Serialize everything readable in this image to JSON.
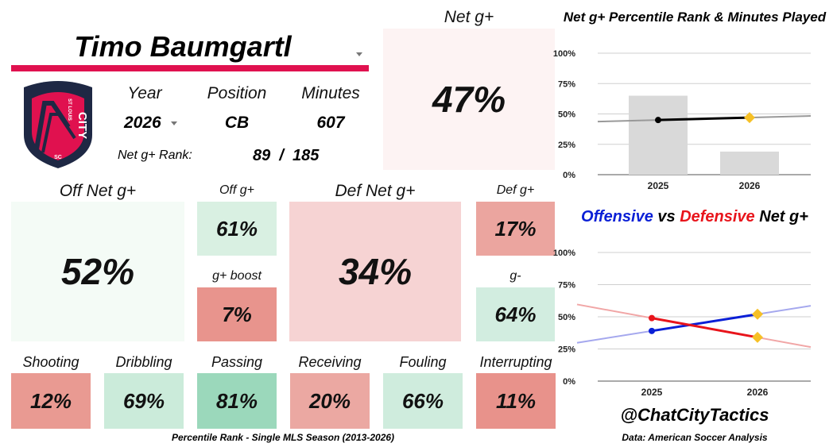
{
  "player": {
    "name": "Timo Baumgartl",
    "year_label": "Year",
    "year_value": "2026",
    "position_label": "Position",
    "position_value": "CB",
    "minutes_label": "Minutes",
    "minutes_value": "607",
    "rank_label": "Net g+ Rank:",
    "rank_value": "89  /  185",
    "club_logo_text": {
      "top": "ST LOUIS",
      "main": "CITY",
      "sc": "SC"
    }
  },
  "net": {
    "label": "Net g+",
    "value": "47%",
    "color": "#fdf3f3"
  },
  "off": {
    "label": "Off Net g+",
    "value": "52%",
    "color": "#f4fbf6"
  },
  "def": {
    "label": "Def Net g+",
    "value": "34%",
    "color": "#f6d3d3"
  },
  "off_g": {
    "label": "Off g+",
    "value": "61%",
    "color": "#d9f0e2"
  },
  "g_boost": {
    "label": "g+ boost",
    "value": "7%",
    "color": "#e8948d"
  },
  "def_g": {
    "label": "Def g+",
    "value": "17%",
    "color": "#eba59f"
  },
  "g_minus": {
    "label": "g-",
    "value": "64%",
    "color": "#d2ede0"
  },
  "skills": [
    {
      "label": "Shooting",
      "value": "12%",
      "color": "#e99a92"
    },
    {
      "label": "Dribbling",
      "value": "69%",
      "color": "#cbebda"
    },
    {
      "label": "Passing",
      "value": "81%",
      "color": "#9bd8bb"
    },
    {
      "label": "Receiving",
      "value": "20%",
      "color": "#eba8a2"
    },
    {
      "label": "Fouling",
      "value": "66%",
      "color": "#cfecdd"
    },
    {
      "label": "Interrupting",
      "value": "11%",
      "color": "#e8928b"
    }
  ],
  "footer": {
    "caption": "Percentile Rank - Single MLS Season (2013-2026)",
    "handle": "@ChatCityTactics",
    "source": "Data: American Soccer Analysis"
  },
  "chart_data": [
    {
      "type": "bar",
      "title": "Net g+ Percentile Rank & Minutes Played",
      "categories": [
        "2025",
        "2026"
      ],
      "series": [
        {
          "kind": "bar",
          "values": [
            65,
            19
          ],
          "color": "#d9d9d9"
        },
        {
          "kind": "line",
          "values": [
            45,
            47
          ],
          "color": "#000000",
          "trend_color": "#999999"
        }
      ],
      "yticks": [
        "0%",
        "25%",
        "50%",
        "75%",
        "100%"
      ],
      "ylim": [
        0,
        100
      ],
      "highlight_color": "#f6c026"
    },
    {
      "type": "line",
      "title_parts": [
        {
          "text": "Offensive",
          "color": "#0a1fd6"
        },
        {
          "text": " vs ",
          "color": "#000000"
        },
        {
          "text": "Defensive",
          "color": "#e8141b"
        },
        {
          "text": " Net g+",
          "color": "#000000"
        }
      ],
      "categories": [
        "2025",
        "2026"
      ],
      "series": [
        {
          "values": [
            39,
            52
          ],
          "color": "#0a1fd6",
          "trend_color": "#a5a8ee"
        },
        {
          "values": [
            49,
            34
          ],
          "color": "#e8141b",
          "trend_color": "#f1a6a6"
        }
      ],
      "yticks": [
        "0%",
        "25%",
        "50%",
        "75%",
        "100%"
      ],
      "ylim": [
        0,
        100
      ],
      "highlight_color": "#f6c026"
    }
  ],
  "colors": {
    "accent": "#e0114f",
    "navy": "#1e2844"
  }
}
